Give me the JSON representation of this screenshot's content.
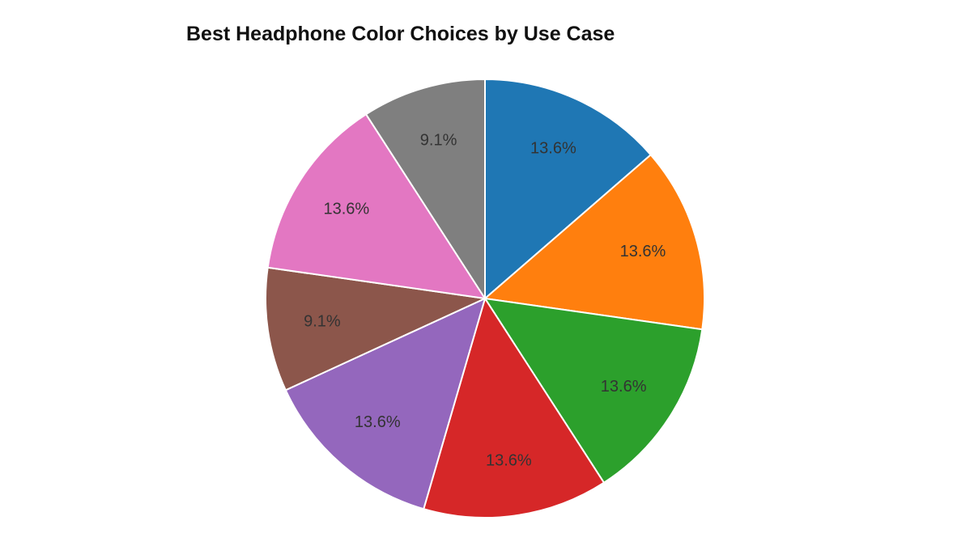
{
  "chart_data": {
    "type": "pie",
    "title": "Best Headphone Color Choices by Use Case",
    "slices": [
      {
        "value": 13.6,
        "label": "13.6%",
        "color": "#1f77b4"
      },
      {
        "value": 13.6,
        "label": "13.6%",
        "color": "#ff7f0e"
      },
      {
        "value": 13.6,
        "label": "13.6%",
        "color": "#2ca02c"
      },
      {
        "value": 13.6,
        "label": "13.6%",
        "color": "#d62728"
      },
      {
        "value": 13.6,
        "label": "13.6%",
        "color": "#9467bd"
      },
      {
        "value": 9.1,
        "label": "9.1%",
        "color": "#8c564b"
      },
      {
        "value": 13.6,
        "label": "13.6%",
        "color": "#e377c2"
      },
      {
        "value": 9.1,
        "label": "9.1%",
        "color": "#7f7f7f"
      }
    ],
    "start_angle": "12 o'clock",
    "direction": "clockwise",
    "legend": "none"
  }
}
